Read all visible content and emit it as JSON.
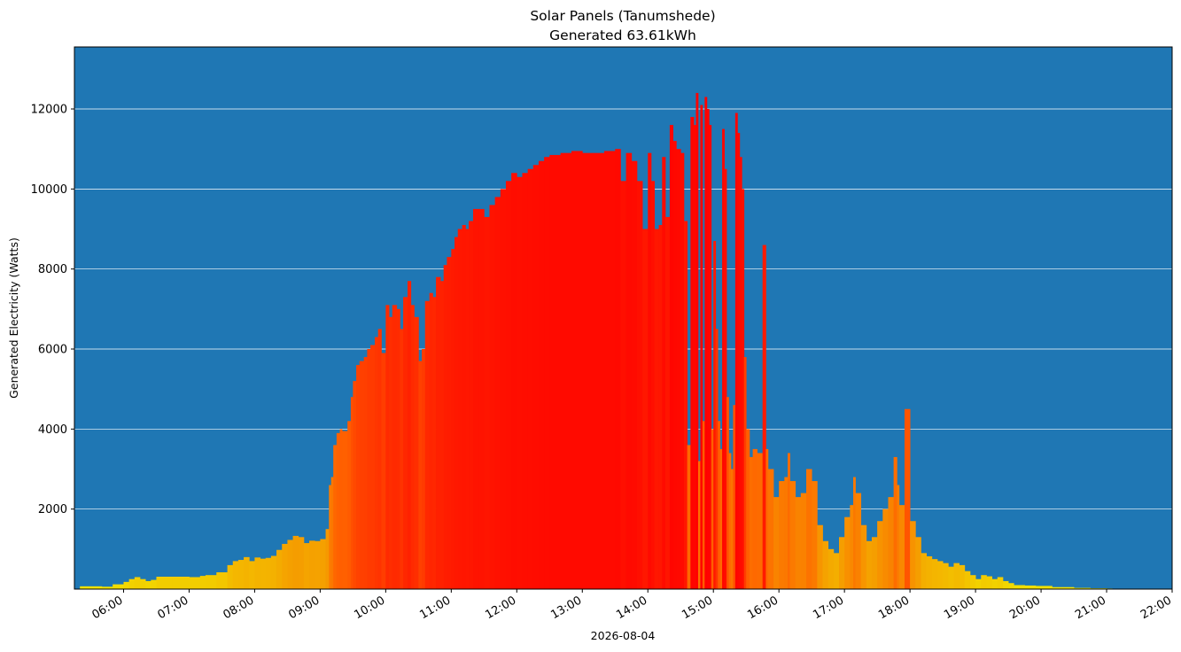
{
  "chart_data": {
    "type": "bar",
    "title": "Solar Panels (Tanumshede)",
    "subtitle": "Generated 63.61kWh",
    "xlabel": "2026-08-04",
    "ylabel": "Generated Electricity (Watts)",
    "background_color": "#1f77b4",
    "grid": "horizontal",
    "color_scale": [
      "#f0f000",
      "#f5a000",
      "#ff6000",
      "#ff2000",
      "#ff0000"
    ],
    "xlim": [
      "05:15",
      "22:00"
    ],
    "ylim": [
      0,
      13550
    ],
    "x_ticks": [
      "06:00",
      "07:00",
      "08:00",
      "09:00",
      "10:00",
      "11:00",
      "12:00",
      "13:00",
      "14:00",
      "15:00",
      "16:00",
      "17:00",
      "18:00",
      "19:00",
      "20:00",
      "21:00",
      "22:00"
    ],
    "y_ticks": [
      2000,
      4000,
      6000,
      8000,
      10000,
      12000
    ],
    "points": [
      [
        "05:20",
        70
      ],
      [
        "05:30",
        70
      ],
      [
        "05:40",
        60
      ],
      [
        "05:50",
        120
      ],
      [
        "06:00",
        180
      ],
      [
        "06:05",
        250
      ],
      [
        "06:10",
        300
      ],
      [
        "06:15",
        250
      ],
      [
        "06:20",
        200
      ],
      [
        "06:25",
        230
      ],
      [
        "06:30",
        310
      ],
      [
        "06:45",
        310
      ],
      [
        "07:00",
        300
      ],
      [
        "07:10",
        330
      ],
      [
        "07:15",
        350
      ],
      [
        "07:25",
        420
      ],
      [
        "07:35",
        600
      ],
      [
        "07:40",
        700
      ],
      [
        "07:45",
        730
      ],
      [
        "07:50",
        800
      ],
      [
        "07:55",
        700
      ],
      [
        "08:00",
        790
      ],
      [
        "08:05",
        760
      ],
      [
        "08:10",
        780
      ],
      [
        "08:15",
        830
      ],
      [
        "08:20",
        980
      ],
      [
        "08:25",
        1130
      ],
      [
        "08:30",
        1230
      ],
      [
        "08:35",
        1330
      ],
      [
        "08:40",
        1300
      ],
      [
        "08:45",
        1150
      ],
      [
        "08:50",
        1210
      ],
      [
        "08:55",
        1200
      ],
      [
        "09:00",
        1250
      ],
      [
        "09:05",
        1500
      ],
      [
        "09:08",
        2600
      ],
      [
        "09:10",
        2800
      ],
      [
        "09:12",
        3600
      ],
      [
        "09:15",
        3900
      ],
      [
        "09:18",
        4000
      ],
      [
        "09:20",
        3950
      ],
      [
        "09:25",
        4200
      ],
      [
        "09:28",
        4800
      ],
      [
        "09:30",
        5200
      ],
      [
        "09:33",
        5600
      ],
      [
        "09:36",
        5700
      ],
      [
        "09:40",
        5800
      ],
      [
        "09:43",
        6000
      ],
      [
        "09:46",
        6100
      ],
      [
        "09:50",
        6300
      ],
      [
        "09:53",
        6500
      ],
      [
        "09:56",
        5900
      ],
      [
        "10:00",
        7100
      ],
      [
        "10:03",
        6800
      ],
      [
        "10:06",
        7100
      ],
      [
        "10:10",
        7000
      ],
      [
        "10:13",
        6500
      ],
      [
        "10:16",
        7300
      ],
      [
        "10:20",
        7700
      ],
      [
        "10:23",
        7100
      ],
      [
        "10:26",
        6800
      ],
      [
        "10:30",
        5700
      ],
      [
        "10:33",
        6000
      ],
      [
        "10:36",
        7200
      ],
      [
        "10:40",
        7400
      ],
      [
        "10:43",
        7300
      ],
      [
        "10:46",
        7800
      ],
      [
        "10:50",
        7700
      ],
      [
        "10:53",
        8100
      ],
      [
        "10:56",
        8300
      ],
      [
        "11:00",
        8500
      ],
      [
        "11:03",
        8800
      ],
      [
        "11:06",
        9000
      ],
      [
        "11:10",
        9100
      ],
      [
        "11:13",
        9000
      ],
      [
        "11:16",
        9200
      ],
      [
        "11:20",
        9500
      ],
      [
        "11:25",
        9500
      ],
      [
        "11:30",
        9300
      ],
      [
        "11:35",
        9600
      ],
      [
        "11:40",
        9800
      ],
      [
        "11:45",
        10000
      ],
      [
        "11:50",
        10200
      ],
      [
        "11:55",
        10400
      ],
      [
        "12:00",
        10300
      ],
      [
        "12:05",
        10400
      ],
      [
        "12:10",
        10500
      ],
      [
        "12:15",
        10600
      ],
      [
        "12:20",
        10700
      ],
      [
        "12:25",
        10800
      ],
      [
        "12:30",
        10850
      ],
      [
        "12:40",
        10900
      ],
      [
        "12:50",
        10950
      ],
      [
        "13:00",
        10900
      ],
      [
        "13:10",
        10900
      ],
      [
        "13:20",
        10950
      ],
      [
        "13:30",
        11000
      ],
      [
        "13:35",
        10200
      ],
      [
        "13:40",
        10900
      ],
      [
        "13:45",
        10700
      ],
      [
        "13:50",
        10200
      ],
      [
        "13:55",
        9000
      ],
      [
        "14:00",
        10900
      ],
      [
        "14:03",
        10200
      ],
      [
        "14:06",
        9000
      ],
      [
        "14:10",
        9100
      ],
      [
        "14:13",
        10800
      ],
      [
        "14:16",
        9300
      ],
      [
        "14:20",
        11600
      ],
      [
        "14:23",
        11200
      ],
      [
        "14:26",
        11000
      ],
      [
        "14:30",
        10900
      ],
      [
        "14:33",
        9200
      ],
      [
        "14:36",
        3600
      ],
      [
        "14:39",
        11800
      ],
      [
        "14:42",
        11600
      ],
      [
        "14:44",
        12400
      ],
      [
        "14:46",
        3200
      ],
      [
        "14:48",
        12100
      ],
      [
        "14:50",
        4200
      ],
      [
        "14:52",
        12300
      ],
      [
        "14:54",
        12000
      ],
      [
        "14:56",
        11600
      ],
      [
        "14:58",
        4000
      ],
      [
        "15:00",
        8700
      ],
      [
        "15:02",
        6500
      ],
      [
        "15:04",
        4200
      ],
      [
        "15:06",
        3500
      ],
      [
        "15:08",
        11500
      ],
      [
        "15:10",
        10500
      ],
      [
        "15:12",
        4800
      ],
      [
        "15:14",
        3400
      ],
      [
        "15:16",
        3000
      ],
      [
        "15:18",
        4600
      ],
      [
        "15:20",
        11900
      ],
      [
        "15:22",
        11400
      ],
      [
        "15:24",
        10800
      ],
      [
        "15:26",
        10000
      ],
      [
        "15:28",
        5800
      ],
      [
        "15:30",
        4000
      ],
      [
        "15:33",
        3300
      ],
      [
        "15:36",
        3500
      ],
      [
        "15:40",
        3400
      ],
      [
        "15:45",
        8600
      ],
      [
        "15:48",
        3500
      ],
      [
        "15:50",
        3000
      ],
      [
        "15:55",
        2300
      ],
      [
        "16:00",
        2700
      ],
      [
        "16:05",
        2800
      ],
      [
        "16:08",
        3400
      ],
      [
        "16:10",
        2700
      ],
      [
        "16:15",
        2300
      ],
      [
        "16:20",
        2400
      ],
      [
        "16:25",
        3000
      ],
      [
        "16:30",
        2700
      ],
      [
        "16:35",
        1600
      ],
      [
        "16:40",
        1200
      ],
      [
        "16:45",
        1000
      ],
      [
        "16:50",
        900
      ],
      [
        "16:55",
        1300
      ],
      [
        "17:00",
        1800
      ],
      [
        "17:05",
        2100
      ],
      [
        "17:08",
        2800
      ],
      [
        "17:10",
        2400
      ],
      [
        "17:15",
        1600
      ],
      [
        "17:20",
        1200
      ],
      [
        "17:25",
        1300
      ],
      [
        "17:30",
        1700
      ],
      [
        "17:35",
        2000
      ],
      [
        "17:40",
        2300
      ],
      [
        "17:45",
        3300
      ],
      [
        "17:48",
        2600
      ],
      [
        "17:50",
        2100
      ],
      [
        "17:55",
        4500
      ],
      [
        "18:00",
        1700
      ],
      [
        "18:05",
        1300
      ],
      [
        "18:10",
        900
      ],
      [
        "18:15",
        820
      ],
      [
        "18:20",
        750
      ],
      [
        "18:25",
        700
      ],
      [
        "18:30",
        650
      ],
      [
        "18:35",
        560
      ],
      [
        "18:40",
        650
      ],
      [
        "18:45",
        600
      ],
      [
        "18:50",
        450
      ],
      [
        "18:55",
        350
      ],
      [
        "19:00",
        250
      ],
      [
        "19:05",
        350
      ],
      [
        "19:10",
        320
      ],
      [
        "19:15",
        250
      ],
      [
        "19:20",
        300
      ],
      [
        "19:25",
        200
      ],
      [
        "19:30",
        150
      ],
      [
        "19:35",
        100
      ],
      [
        "19:45",
        90
      ],
      [
        "19:55",
        80
      ],
      [
        "20:10",
        50
      ],
      [
        "20:30",
        30
      ],
      [
        "20:45",
        20
      ],
      [
        "21:00",
        15
      ]
    ]
  }
}
